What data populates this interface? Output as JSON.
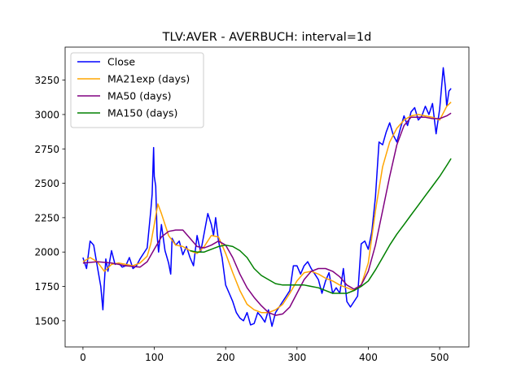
{
  "chart_data": {
    "type": "line",
    "title": "TLV:AVER - AVERBUCH: interval=1d",
    "xlabel": "",
    "ylabel": "",
    "xlim": [
      -25,
      541
    ],
    "ylim": [
      1310,
      3490
    ],
    "x_ticks": [
      0,
      100,
      200,
      300,
      400,
      500
    ],
    "y_ticks": [
      1500,
      1750,
      2000,
      2250,
      2500,
      2750,
      3000,
      3250
    ],
    "grid": false,
    "legend_position": "top-left",
    "series": [
      {
        "name": "Close",
        "color": "#0000ff",
        "x": [
          0,
          5,
          10,
          15,
          20,
          25,
          28,
          30,
          32,
          35,
          40,
          45,
          50,
          55,
          60,
          65,
          70,
          75,
          80,
          85,
          90,
          95,
          97,
          99,
          100,
          102,
          104,
          106,
          110,
          115,
          120,
          123,
          125,
          130,
          135,
          140,
          145,
          150,
          155,
          160,
          165,
          170,
          175,
          180,
          183,
          186,
          190,
          195,
          200,
          205,
          210,
          215,
          220,
          225,
          230,
          235,
          240,
          245,
          250,
          255,
          260,
          265,
          270,
          275,
          280,
          285,
          290,
          295,
          300,
          305,
          310,
          315,
          320,
          325,
          330,
          335,
          340,
          345,
          350,
          355,
          360,
          365,
          370,
          375,
          380,
          385,
          390,
          395,
          400,
          405,
          410,
          415,
          420,
          425,
          430,
          435,
          440,
          445,
          450,
          455,
          460,
          465,
          470,
          475,
          480,
          485,
          490,
          495,
          500,
          505,
          508,
          510,
          513,
          516
        ],
        "y": [
          1960,
          1880,
          2080,
          2050,
          1900,
          1750,
          1580,
          1780,
          1950,
          1860,
          2010,
          1910,
          1920,
          1890,
          1900,
          1960,
          1880,
          1900,
          1950,
          1990,
          2030,
          2300,
          2420,
          2760,
          2550,
          2480,
          2120,
          2000,
          2200,
          2010,
          1920,
          1840,
          2100,
          2050,
          2080,
          1980,
          2040,
          1960,
          1900,
          2120,
          2000,
          2140,
          2280,
          2200,
          2120,
          2250,
          2080,
          1960,
          1760,
          1700,
          1640,
          1560,
          1520,
          1500,
          1560,
          1470,
          1480,
          1560,
          1530,
          1490,
          1580,
          1460,
          1560,
          1600,
          1640,
          1680,
          1720,
          1900,
          1900,
          1840,
          1900,
          1930,
          1880,
          1840,
          1800,
          1700,
          1790,
          1850,
          1700,
          1740,
          1700,
          1880,
          1640,
          1600,
          1640,
          1680,
          2060,
          2080,
          2020,
          2150,
          2400,
          2800,
          2780,
          2870,
          2940,
          2850,
          2800,
          2900,
          2990,
          2920,
          3020,
          3050,
          2960,
          2990,
          3060,
          3000,
          3080,
          2860,
          3040,
          3340,
          3200,
          3060,
          3170,
          3190
        ]
      },
      {
        "name": "MA21exp (days)",
        "color": "#ffa500",
        "x": [
          0,
          10,
          20,
          30,
          40,
          50,
          60,
          70,
          80,
          90,
          95,
          100,
          105,
          110,
          120,
          130,
          140,
          150,
          160,
          170,
          180,
          190,
          200,
          210,
          220,
          230,
          240,
          250,
          260,
          270,
          280,
          290,
          300,
          310,
          320,
          330,
          340,
          350,
          360,
          370,
          380,
          390,
          400,
          410,
          420,
          430,
          440,
          450,
          460,
          470,
          480,
          490,
          500,
          510,
          516
        ],
        "y": [
          1930,
          1960,
          1930,
          1860,
          1910,
          1920,
          1910,
          1900,
          1920,
          1970,
          2060,
          2200,
          2350,
          2280,
          2120,
          2050,
          2040,
          2010,
          1990,
          2040,
          2120,
          2110,
          1990,
          1850,
          1720,
          1620,
          1580,
          1560,
          1560,
          1580,
          1620,
          1700,
          1790,
          1850,
          1860,
          1840,
          1810,
          1790,
          1760,
          1740,
          1720,
          1760,
          1920,
          2300,
          2620,
          2800,
          2900,
          2960,
          2990,
          3000,
          2990,
          2980,
          2960,
          3060,
          3090
        ]
      },
      {
        "name": "MA50 (days)",
        "color": "#800080",
        "x": [
          0,
          20,
          40,
          60,
          80,
          90,
          100,
          110,
          120,
          130,
          140,
          150,
          160,
          170,
          180,
          190,
          200,
          210,
          220,
          230,
          240,
          250,
          260,
          270,
          280,
          290,
          300,
          310,
          320,
          330,
          340,
          350,
          360,
          370,
          380,
          390,
          400,
          410,
          420,
          430,
          440,
          450,
          460,
          470,
          480,
          490,
          500,
          510,
          516
        ],
        "y": [
          1920,
          1930,
          1920,
          1900,
          1890,
          1930,
          2020,
          2110,
          2150,
          2160,
          2160,
          2100,
          2040,
          2030,
          2050,
          2080,
          2050,
          1960,
          1840,
          1740,
          1670,
          1610,
          1560,
          1540,
          1550,
          1600,
          1700,
          1800,
          1860,
          1880,
          1880,
          1860,
          1820,
          1760,
          1730,
          1760,
          1860,
          2050,
          2300,
          2550,
          2780,
          2920,
          2980,
          2980,
          2980,
          2970,
          2970,
          2990,
          3010
        ]
      },
      {
        "name": "MA150 (days)",
        "color": "#008000",
        "x": [
          150,
          160,
          170,
          180,
          190,
          200,
          210,
          220,
          230,
          240,
          250,
          260,
          270,
          280,
          290,
          300,
          310,
          320,
          330,
          340,
          350,
          360,
          370,
          380,
          390,
          400,
          410,
          420,
          430,
          440,
          450,
          460,
          470,
          480,
          490,
          500,
          510,
          516
        ],
        "y": [
          2010,
          2000,
          2000,
          2020,
          2040,
          2050,
          2040,
          2010,
          1960,
          1880,
          1830,
          1800,
          1770,
          1760,
          1760,
          1760,
          1760,
          1750,
          1740,
          1720,
          1700,
          1700,
          1700,
          1720,
          1750,
          1790,
          1870,
          1960,
          2050,
          2130,
          2200,
          2270,
          2340,
          2410,
          2480,
          2550,
          2630,
          2680
        ]
      }
    ]
  }
}
